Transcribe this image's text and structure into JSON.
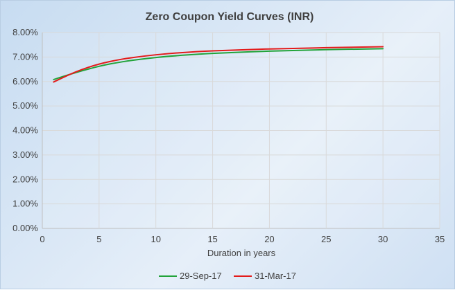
{
  "chart_data": {
    "type": "line",
    "title": "Zero Coupon Yield Curves (INR)",
    "xlabel": "Duration in years",
    "ylabel": "",
    "xlim": [
      0,
      35
    ],
    "ylim": [
      0,
      0.08
    ],
    "x_ticks": [
      0,
      5,
      10,
      15,
      20,
      25,
      30,
      35
    ],
    "y_ticks": [
      0,
      0.01,
      0.02,
      0.03,
      0.04,
      0.05,
      0.06,
      0.07,
      0.08
    ],
    "x_tick_labels": [
      "0",
      "5",
      "10",
      "15",
      "20",
      "25",
      "30",
      "35"
    ],
    "y_tick_labels": [
      "0.00%",
      "1.00%",
      "2.00%",
      "3.00%",
      "4.00%",
      "5.00%",
      "6.00%",
      "7.00%",
      "8.00%"
    ],
    "grid": true,
    "legend_position": "bottom",
    "series": [
      {
        "name": "29-Sep-17",
        "color": "#22a33a",
        "x": [
          1,
          2,
          3,
          4,
          5,
          6,
          7,
          8,
          10,
          12,
          15,
          20,
          25,
          30
        ],
        "values": [
          0.0608,
          0.0623,
          0.0637,
          0.065,
          0.0662,
          0.0672,
          0.068,
          0.0687,
          0.0698,
          0.0706,
          0.0715,
          0.0724,
          0.073,
          0.0734
        ]
      },
      {
        "name": "31-Mar-17",
        "color": "#e31b1b",
        "x": [
          1,
          2,
          3,
          4,
          5,
          6,
          7,
          8,
          10,
          12,
          15,
          20,
          25,
          30
        ],
        "values": [
          0.0598,
          0.062,
          0.064,
          0.0657,
          0.0671,
          0.0682,
          0.0691,
          0.0698,
          0.0709,
          0.0717,
          0.0725,
          0.0733,
          0.0738,
          0.0742
        ]
      }
    ]
  }
}
